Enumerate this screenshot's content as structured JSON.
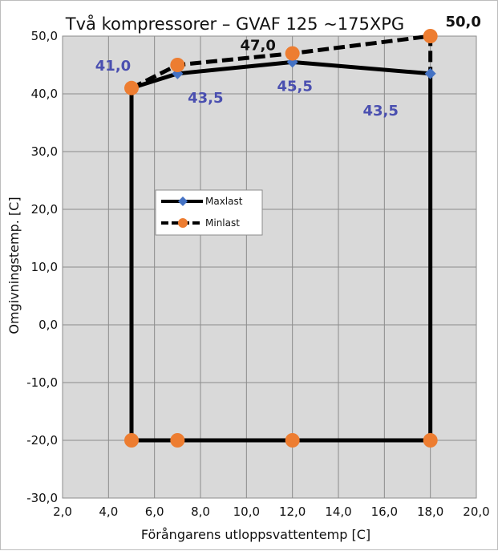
{
  "chart_data": {
    "type": "line",
    "title": "Två kompressorer – GVAF 125 ~175XPG",
    "xlabel": "Förångarens utloppsvattentemp [C]",
    "ylabel": "Omgivningstemp. [C]",
    "xlim": [
      2,
      20
    ],
    "ylim": [
      -30,
      50
    ],
    "x_ticks": [
      "2,0",
      "4,0",
      "6,0",
      "8,0",
      "10,0",
      "12,0",
      "14,0",
      "16,0",
      "18,0",
      "20,0"
    ],
    "y_ticks": [
      "-30,0",
      "-20,0",
      "-10,0",
      "0,0",
      "10,0",
      "20,0",
      "30,0",
      "40,0",
      "50,0"
    ],
    "grid": true,
    "legend_placement": "center-left",
    "series": [
      {
        "name": "Maxlast",
        "color": "#000000",
        "marker_color": "#4472c4",
        "marker": "diamond",
        "line_style": "solid",
        "points": [
          [
            5,
            41
          ],
          [
            7,
            43.5
          ],
          [
            12,
            45.5
          ],
          [
            18,
            43.5
          ],
          [
            18,
            -20
          ],
          [
            12,
            -20
          ],
          [
            7,
            -20
          ],
          [
            5,
            -20
          ],
          [
            5,
            41
          ]
        ]
      },
      {
        "name": "Minlast",
        "color": "#000000",
        "marker_color": "#ed7d31",
        "marker": "circle",
        "line_style": "dashed",
        "points": [
          [
            5,
            41
          ],
          [
            7,
            45
          ],
          [
            12,
            47
          ],
          [
            18,
            50
          ],
          [
            18,
            43.5
          ]
        ]
      }
    ],
    "minlast_extra_markers": [
      [
        5,
        -20
      ],
      [
        7,
        -20
      ],
      [
        12,
        -20
      ],
      [
        18,
        -20
      ]
    ],
    "annotations": [
      {
        "text": "41,0",
        "x": 5,
        "y": 41,
        "color": "#4a4fb0"
      },
      {
        "text": "43,5",
        "x": 7,
        "y": 43.5,
        "color": "#4a4fb0"
      },
      {
        "text": "45,5",
        "x": 12,
        "y": 45.5,
        "color": "#4a4fb0"
      },
      {
        "text": "43,5",
        "x": 18,
        "y": 43.5,
        "color": "#4a4fb0"
      },
      {
        "text": "47,0",
        "x": 12,
        "y": 47,
        "color": "#111111"
      },
      {
        "text": "50,0",
        "x": 18,
        "y": 50,
        "color": "#111111"
      }
    ]
  }
}
